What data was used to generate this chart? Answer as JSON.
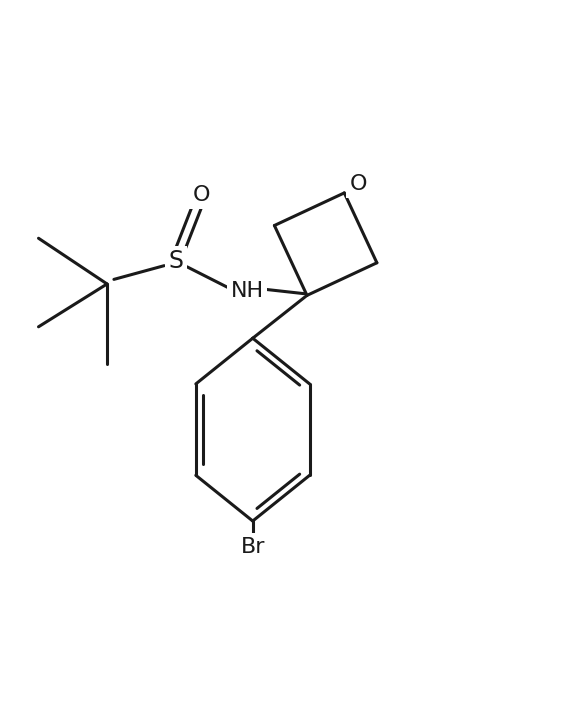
{
  "bg_color": "#ffffff",
  "line_color": "#1a1a1a",
  "line_width": 2.2,
  "font_size": 16,
  "figsize": [
    5.74,
    7.05
  ],
  "dpi": 100,
  "O_label": "O",
  "S_label": "S",
  "NH_label": "NH",
  "Br_label": "Br"
}
